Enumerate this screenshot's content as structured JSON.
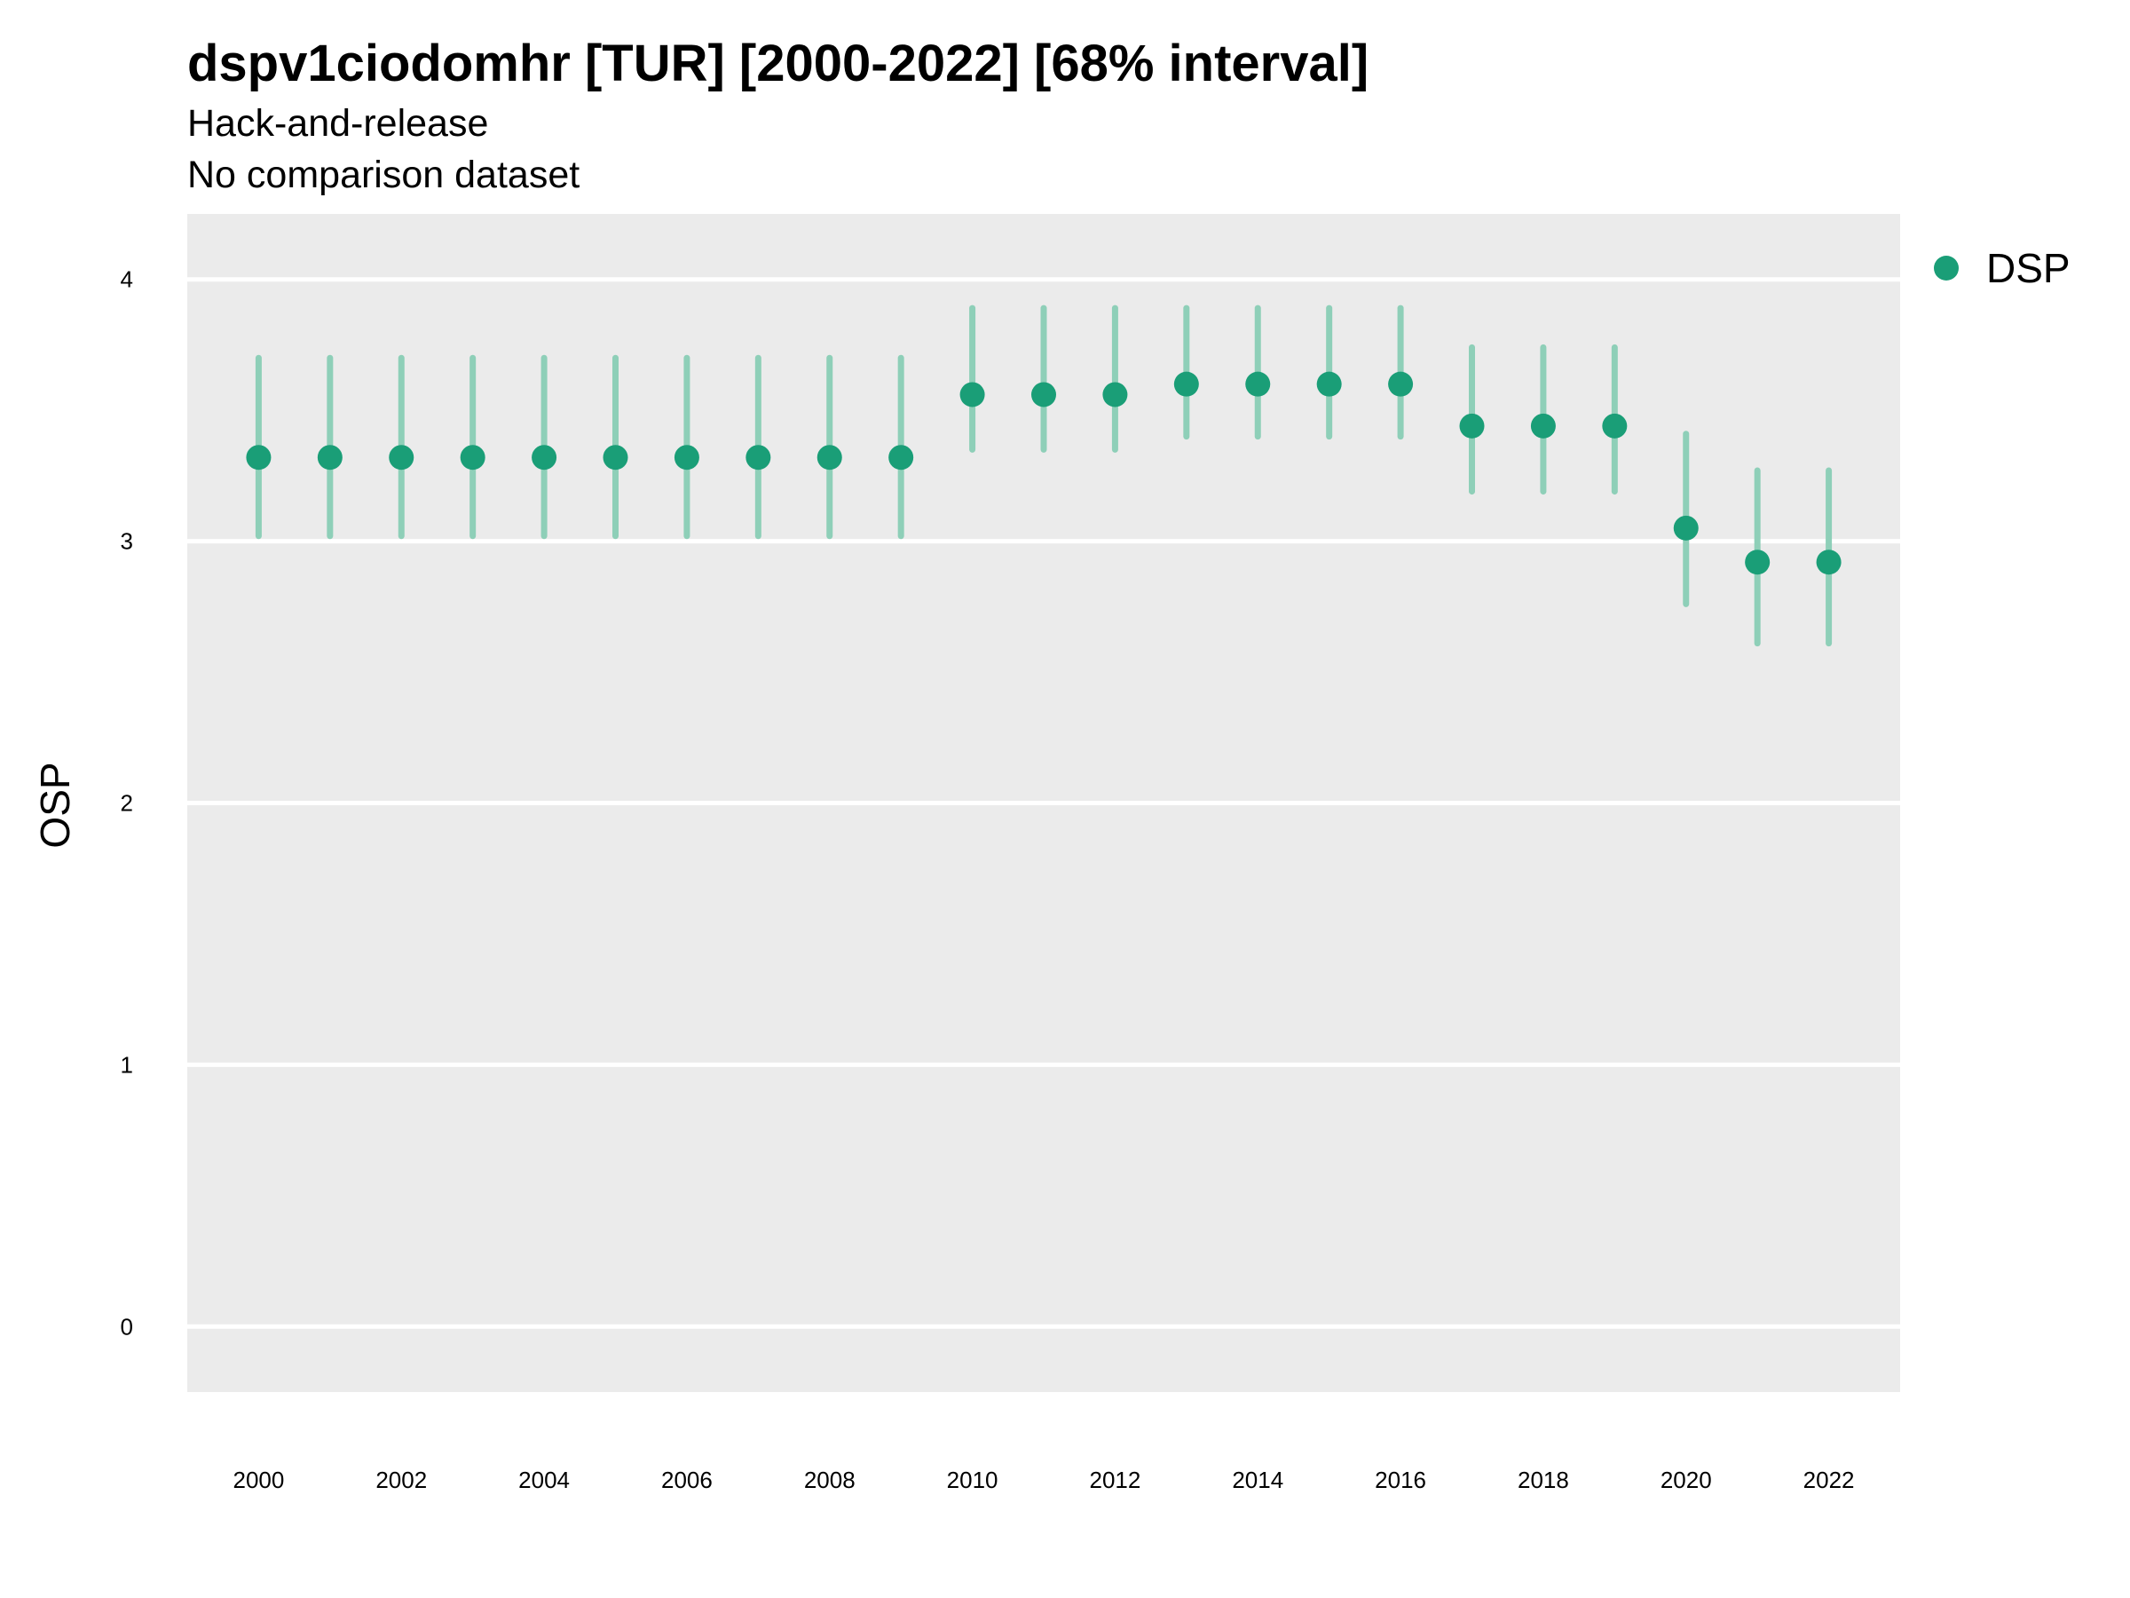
{
  "chart_data": {
    "type": "scatter",
    "title": "dspv1ciodomhr [TUR] [2000-2022] [68% interval]",
    "subtitle_lines": [
      "Hack-and-release",
      "No comparison dataset"
    ],
    "xlabel": "",
    "ylabel": "OSP",
    "x_ticks": [
      2000,
      2002,
      2004,
      2006,
      2008,
      2010,
      2012,
      2014,
      2016,
      2018,
      2020,
      2022
    ],
    "y_ticks": [
      0,
      1,
      2,
      3,
      4
    ],
    "xlim": [
      1999,
      2023
    ],
    "ylim": [
      -0.25,
      4.25
    ],
    "grid": true,
    "legend_position": "top-right",
    "colors": {
      "point": "#1a9e77",
      "interval": "#8ecfb8",
      "panel": "#ebebeb",
      "grid": "#ffffff"
    },
    "series": [
      {
        "name": "DSP",
        "x": [
          2000,
          2001,
          2002,
          2003,
          2004,
          2005,
          2006,
          2007,
          2008,
          2009,
          2010,
          2011,
          2012,
          2013,
          2014,
          2015,
          2016,
          2017,
          2018,
          2019,
          2020,
          2021,
          2022
        ],
        "y": [
          3.32,
          3.32,
          3.32,
          3.32,
          3.32,
          3.32,
          3.32,
          3.32,
          3.32,
          3.32,
          3.56,
          3.56,
          3.56,
          3.6,
          3.6,
          3.6,
          3.6,
          3.44,
          3.44,
          3.44,
          3.05,
          2.92,
          2.92
        ],
        "lower": [
          3.02,
          3.02,
          3.02,
          3.02,
          3.02,
          3.02,
          3.02,
          3.02,
          3.02,
          3.02,
          3.35,
          3.35,
          3.35,
          3.4,
          3.4,
          3.4,
          3.4,
          3.19,
          3.19,
          3.19,
          2.76,
          2.61,
          2.61
        ],
        "upper": [
          3.7,
          3.7,
          3.7,
          3.7,
          3.7,
          3.7,
          3.7,
          3.7,
          3.7,
          3.7,
          3.89,
          3.89,
          3.89,
          3.89,
          3.89,
          3.89,
          3.89,
          3.74,
          3.74,
          3.74,
          3.41,
          3.27,
          3.27
        ]
      }
    ]
  }
}
